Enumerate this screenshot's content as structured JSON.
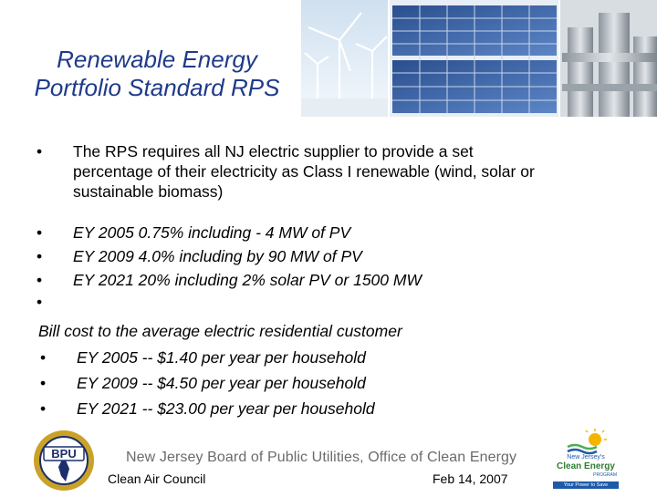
{
  "slide": {
    "title_line1": "Renewable Energy",
    "title_line2": "Portfolio Standard RPS"
  },
  "bullets": {
    "main_bullet": "•",
    "main_text_line1": "The RPS requires all NJ electric supplier to provide a set",
    "main_text_line2": "percentage of their electricity as Class I renewable (wind, solar or",
    "main_text_line3": "sustainable biomass)",
    "ey_items": [
      "EY 2005  0.75% including  - 4 MW of PV",
      "EY 2009 4.0% including by 90 MW of PV",
      "EY 2021 20% including 2% solar PV or 1500 MW"
    ],
    "empty_bullet": "•"
  },
  "cost_section": {
    "heading": "Bill cost to the average electric residential customer",
    "items": [
      "EY 2005 --  $1.40 per year per household",
      "EY 2009 -- $4.50 per year per household",
      "EY 2021 -- $23.00 per year per household"
    ]
  },
  "footer": {
    "board_text": "New Jersey Board of Public Utilities, Office of Clean Energy",
    "left_text": "Clean Air Council",
    "right_text": "Feb 14, 2007",
    "bpu_logo_text": "BPU",
    "nj_logo_line1": "New Jersey's",
    "nj_logo_line2": "Clean Energy",
    "nj_logo_line3": "PROGRAM",
    "nj_logo_tagline": "Your Power to Save"
  },
  "colors": {
    "title": "#1f3a8a",
    "footer_gray": "#6b6b6b",
    "bpu_gold": "#c9a227",
    "bpu_navy": "#1b2f6b",
    "nj_green": "#4caf50",
    "nj_blue": "#1e5aa8"
  }
}
